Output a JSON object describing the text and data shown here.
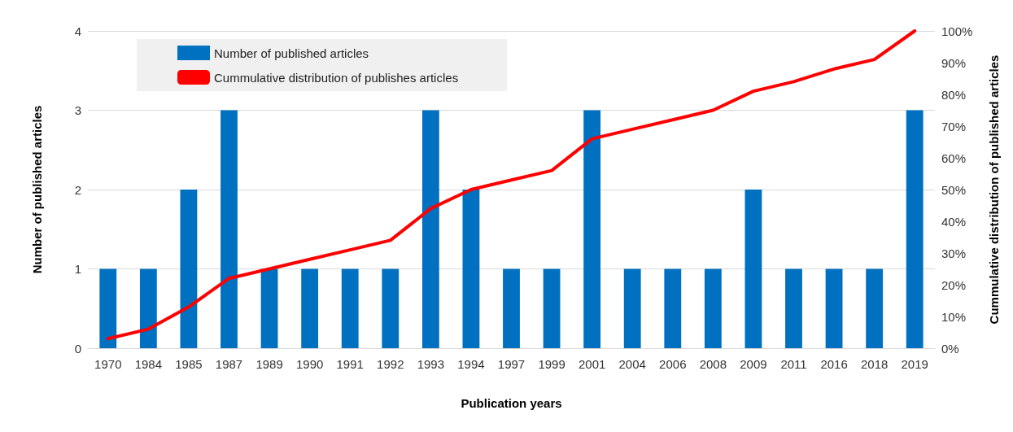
{
  "chart_data": {
    "type": "bar",
    "xlabel": "Publication years",
    "ylabel": "Number of published articles",
    "y2label": "Cummulative distribution of published articles",
    "categories": [
      "1970",
      "1984",
      "1985",
      "1987",
      "1989",
      "1990",
      "1991",
      "1992",
      "1993",
      "1994",
      "1997",
      "1999",
      "2001",
      "2004",
      "2006",
      "2008",
      "2009",
      "2011",
      "2016",
      "2018",
      "2019"
    ],
    "series": [
      {
        "name": "Number of published articles",
        "color": "#0070c0",
        "values": [
          1,
          1,
          2,
          3,
          1,
          1,
          1,
          1,
          3,
          2,
          1,
          1,
          3,
          1,
          1,
          1,
          2,
          1,
          1,
          1,
          3
        ]
      },
      {
        "name": "Cummulative distribution of publishes articles",
        "type": "line",
        "axis": "y2",
        "color": "#ff0000",
        "values": [
          3,
          6,
          13,
          22,
          25,
          28,
          31,
          34,
          44,
          50,
          53,
          56,
          66,
          69,
          72,
          75,
          81,
          84,
          88,
          91,
          100
        ]
      }
    ],
    "ylim": [
      0,
      4
    ],
    "yticks": [
      0,
      1,
      2,
      3,
      4
    ],
    "y2lim": [
      0,
      100
    ],
    "y2ticks": [
      {
        "value": 0,
        "label": "0%"
      },
      {
        "value": 10,
        "label": "10%"
      },
      {
        "value": 20,
        "label": "20%"
      },
      {
        "value": 30,
        "label": "30%"
      },
      {
        "value": 40,
        "label": "40%"
      },
      {
        "value": 50,
        "label": "50%"
      },
      {
        "value": 60,
        "label": "60%"
      },
      {
        "value": 70,
        "label": "70%"
      },
      {
        "value": 80,
        "label": "80%"
      },
      {
        "value": 90,
        "label": "90%"
      },
      {
        "value": 100,
        "label": "100%"
      }
    ],
    "grid": "y",
    "legend": "top left",
    "marker": "none",
    "line_style": "solid"
  }
}
